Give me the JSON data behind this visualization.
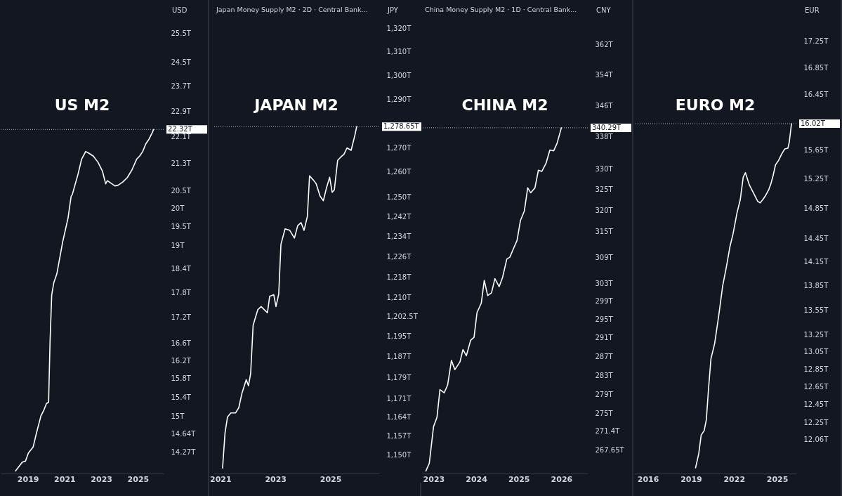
{
  "chart_data": [
    {
      "type": "line",
      "title": "US M2",
      "ylabel": "USD",
      "log": true,
      "grid": false,
      "marker": "none",
      "line_style": "solid",
      "color": "#ffffff",
      "x": [
        2018.33,
        2018.7,
        2018.87,
        2019.03,
        2019.29,
        2019.45,
        2019.71,
        2019.88,
        2020.01,
        2020.13,
        2020.21,
        2020.3,
        2020.41,
        2020.58,
        2020.89,
        2021.19,
        2021.36,
        2021.42,
        2021.73,
        2021.93,
        2022.15,
        2022.32,
        2022.57,
        2022.82,
        2023.07,
        2023.24,
        2023.33,
        2023.58,
        2023.75,
        2023.92,
        2024.17,
        2024.42,
        2024.67,
        2024.93,
        2025.09,
        2025.26,
        2025.43,
        2025.6,
        2025.77,
        2025.85
      ],
      "values": [
        13.9,
        14.07,
        14.09,
        14.25,
        14.37,
        14.62,
        15.0,
        15.13,
        15.26,
        15.29,
        16.63,
        17.74,
        18.04,
        18.27,
        19.08,
        19.74,
        20.35,
        20.39,
        20.97,
        21.42,
        21.65,
        21.6,
        21.51,
        21.33,
        21.06,
        20.7,
        20.79,
        20.7,
        20.64,
        20.66,
        20.75,
        20.88,
        21.1,
        21.42,
        21.51,
        21.65,
        21.88,
        22.02,
        22.21,
        22.32
      ],
      "xlim": [
        2017.52,
        2026.4
      ],
      "xticks": [
        2019,
        2021,
        2023,
        2025
      ],
      "ylim": [
        13.85,
        26.66
      ],
      "yticks": [
        {
          "value": 25.5,
          "label": "25.5T"
        },
        {
          "value": 24.5,
          "label": "24.5T"
        },
        {
          "value": 23.7,
          "label": "23.7T"
        },
        {
          "value": 22.9,
          "label": "22.9T"
        },
        {
          "value": 22.1,
          "label": "22.1T"
        },
        {
          "value": 21.3,
          "label": "21.3T"
        },
        {
          "value": 20.5,
          "label": "20.5T"
        },
        {
          "value": 20,
          "label": "20T"
        },
        {
          "value": 19.5,
          "label": "19.5T"
        },
        {
          "value": 19,
          "label": "19T"
        },
        {
          "value": 18.4,
          "label": "18.4T"
        },
        {
          "value": 17.8,
          "label": "17.8T"
        },
        {
          "value": 17.2,
          "label": "17.2T"
        },
        {
          "value": 16.6,
          "label": "16.6T"
        },
        {
          "value": 16.2,
          "label": "16.2T"
        },
        {
          "value": 15.8,
          "label": "15.8T"
        },
        {
          "value": 15.4,
          "label": "15.4T"
        },
        {
          "value": 15,
          "label": "15T"
        },
        {
          "value": 14.64,
          "label": "14.64T"
        },
        {
          "value": 14.27,
          "label": "14.27T"
        }
      ],
      "ref_lines": [
        {
          "axis": "y",
          "value": 22.32,
          "label": "22.32T",
          "line_style": "dotted",
          "color": "#b2b5be"
        }
      ]
    },
    {
      "type": "line",
      "title": "JAPAN M2",
      "subtitle": "Japan Money Supply M2 · 2D · Central Bank...",
      "ylabel": "JPY",
      "log": true,
      "grid": false,
      "marker": "none",
      "line_style": "solid",
      "color": "#ffffff",
      "x": [
        2021.08,
        2021.17,
        2021.26,
        2021.38,
        2021.55,
        2021.67,
        2021.78,
        2021.94,
        2022.02,
        2022.1,
        2022.19,
        2022.36,
        2022.48,
        2022.65,
        2022.71,
        2022.79,
        2022.94,
        2023.02,
        2023.12,
        2023.2,
        2023.35,
        2023.52,
        2023.69,
        2023.81,
        2023.93,
        2024.04,
        2024.16,
        2024.24,
        2024.39,
        2024.48,
        2024.62,
        2024.74,
        2024.85,
        2024.97,
        2025.06,
        2025.14,
        2025.26,
        2025.37,
        2025.49,
        2025.6,
        2025.75,
        2025.89,
        2025.95
      ],
      "values": [
        1145,
        1158.2,
        1164.1,
        1165.6,
        1165.6,
        1167.6,
        1172.9,
        1178.2,
        1175.9,
        1180.6,
        1199.1,
        1205.2,
        1206.4,
        1204.6,
        1204.0,
        1210.4,
        1211.0,
        1206.4,
        1211.3,
        1230.9,
        1237.1,
        1236.5,
        1233.4,
        1238.4,
        1239.6,
        1236.5,
        1242.1,
        1258.5,
        1256.6,
        1255.3,
        1250.3,
        1248.4,
        1253.4,
        1257.9,
        1251.8,
        1252.8,
        1264.8,
        1266.1,
        1267.3,
        1269.9,
        1268.9,
        1275.3,
        1278.65
      ],
      "xlim": [
        2020.75,
        2026.77
      ],
      "xticks": [
        2021,
        2023,
        2025
      ],
      "ylim": [
        1143,
        1331.5
      ],
      "yticks": [
        {
          "value": 1320,
          "label": "1,320T"
        },
        {
          "value": 1310,
          "label": "1,310T"
        },
        {
          "value": 1300,
          "label": "1,300T"
        },
        {
          "value": 1290,
          "label": "1,290T"
        },
        {
          "value": 1270,
          "label": "1,270T"
        },
        {
          "value": 1260,
          "label": "1,260T"
        },
        {
          "value": 1250,
          "label": "1,250T"
        },
        {
          "value": 1242,
          "label": "1,242T"
        },
        {
          "value": 1234,
          "label": "1,234T"
        },
        {
          "value": 1226,
          "label": "1,226T"
        },
        {
          "value": 1218,
          "label": "1,218T"
        },
        {
          "value": 1210,
          "label": "1,210T"
        },
        {
          "value": 1202.5,
          "label": "1,202.5T"
        },
        {
          "value": 1195,
          "label": "1,195T"
        },
        {
          "value": 1187,
          "label": "1,187T"
        },
        {
          "value": 1179,
          "label": "1,179T"
        },
        {
          "value": 1171,
          "label": "1,171T"
        },
        {
          "value": 1164,
          "label": "1,164T"
        },
        {
          "value": 1157,
          "label": "1,157T"
        },
        {
          "value": 1150,
          "label": "1,150T"
        }
      ],
      "ref_lines": [
        {
          "axis": "y",
          "value": 1278.65,
          "label": "1,278.65T",
          "line_style": "dotted",
          "color": "#b2b5be"
        }
      ]
    },
    {
      "type": "line",
      "title": "CHINA M2",
      "subtitle": "China Money Supply M2 · 1D · Central Bank...",
      "ylabel": "CNY",
      "log": true,
      "grid": false,
      "marker": "none",
      "line_style": "solid",
      "color": "#ffffff",
      "x": [
        2022.82,
        2022.9,
        2023.0,
        2023.08,
        2023.15,
        2023.25,
        2023.33,
        2023.42,
        2023.5,
        2023.62,
        2023.69,
        2023.77,
        2023.87,
        2023.95,
        2024.02,
        2024.12,
        2024.19,
        2024.27,
        2024.36,
        2024.44,
        2024.54,
        2024.62,
        2024.72,
        2024.79,
        2024.88,
        2024.96,
        2025.04,
        2025.13,
        2025.21,
        2025.28,
        2025.38,
        2025.46,
        2025.54,
        2025.64,
        2025.73,
        2025.82,
        2025.9,
        2026.0
      ],
      "values": [
        263.5,
        265.0,
        272.36,
        274.24,
        279.97,
        279.31,
        280.93,
        286.14,
        284.17,
        285.81,
        288.45,
        287.12,
        290.44,
        291.1,
        296.5,
        298.6,
        303.7,
        300.3,
        300.9,
        304.1,
        302.3,
        304.4,
        308.6,
        309.0,
        311.1,
        312.9,
        317.6,
        319.8,
        325.4,
        324.2,
        325.4,
        329.7,
        329.4,
        331.4,
        334.7,
        334.5,
        336.4,
        340.29
      ],
      "xlim": [
        2022.73,
        2026.62
      ],
      "xticks": [
        2023,
        2024,
        2025,
        2026
      ],
      "ylim": [
        263,
        373.9
      ],
      "yticks": [
        {
          "value": 362,
          "label": "362T"
        },
        {
          "value": 354,
          "label": "354T"
        },
        {
          "value": 346,
          "label": "346T"
        },
        {
          "value": 338,
          "label": "338T"
        },
        {
          "value": 330,
          "label": "330T"
        },
        {
          "value": 325,
          "label": "325T"
        },
        {
          "value": 320,
          "label": "320T"
        },
        {
          "value": 315,
          "label": "315T"
        },
        {
          "value": 309,
          "label": "309T"
        },
        {
          "value": 303,
          "label": "303T"
        },
        {
          "value": 299,
          "label": "299T"
        },
        {
          "value": 295,
          "label": "295T"
        },
        {
          "value": 291,
          "label": "291T"
        },
        {
          "value": 287,
          "label": "287T"
        },
        {
          "value": 283,
          "label": "283T"
        },
        {
          "value": 279,
          "label": "279T"
        },
        {
          "value": 275,
          "label": "275T"
        },
        {
          "value": 271.4,
          "label": "271.4T"
        },
        {
          "value": 267.65,
          "label": "267.65T"
        }
      ],
      "ref_lines": [
        {
          "axis": "y",
          "value": 340.29,
          "label": "340.29T",
          "line_style": "dotted",
          "color": "#b2b5be"
        }
      ]
    },
    {
      "type": "line",
      "title": "EURO M2",
      "ylabel": "EUR",
      "log": true,
      "grid": false,
      "marker": "none",
      "line_style": "solid",
      "color": "#ffffff",
      "x": [
        2019.32,
        2019.54,
        2019.71,
        2019.92,
        2020.07,
        2020.22,
        2020.39,
        2020.65,
        2020.93,
        2021.21,
        2021.46,
        2021.72,
        2021.93,
        2022.21,
        2022.43,
        2022.64,
        2022.79,
        2023.07,
        2023.39,
        2023.65,
        2023.82,
        2023.99,
        2024.2,
        2024.42,
        2024.57,
        2024.72,
        2024.89,
        2025.1,
        2025.32,
        2025.53,
        2025.75,
        2025.85,
        2026.0
      ],
      "values": [
        11.76,
        11.91,
        12.11,
        12.16,
        12.28,
        12.62,
        12.97,
        13.15,
        13.48,
        13.85,
        14.08,
        14.35,
        14.51,
        14.79,
        14.96,
        15.27,
        15.33,
        15.16,
        15.04,
        14.94,
        14.92,
        14.96,
        15.02,
        15.1,
        15.18,
        15.29,
        15.44,
        15.5,
        15.59,
        15.66,
        15.67,
        15.76,
        16.02
      ],
      "xlim": [
        2015.04,
        2026.34
      ],
      "xticks": [
        2016,
        2019,
        2022,
        2025
      ],
      "ylim": [
        11.7,
        17.88
      ],
      "yticks": [
        {
          "value": 17.25,
          "label": "17.25T"
        },
        {
          "value": 16.85,
          "label": "16.85T"
        },
        {
          "value": 16.45,
          "label": "16.45T"
        },
        {
          "value": 15.65,
          "label": "15.65T"
        },
        {
          "value": 15.25,
          "label": "15.25T"
        },
        {
          "value": 14.85,
          "label": "14.85T"
        },
        {
          "value": 14.45,
          "label": "14.45T"
        },
        {
          "value": 14.15,
          "label": "14.15T"
        },
        {
          "value": 13.85,
          "label": "13.85T"
        },
        {
          "value": 13.55,
          "label": "13.55T"
        },
        {
          "value": 13.25,
          "label": "13.25T"
        },
        {
          "value": 13.05,
          "label": "13.05T"
        },
        {
          "value": 12.85,
          "label": "12.85T"
        },
        {
          "value": 12.65,
          "label": "12.65T"
        },
        {
          "value": 12.45,
          "label": "12.45T"
        },
        {
          "value": 12.25,
          "label": "12.25T"
        },
        {
          "value": 12.06,
          "label": "12.06T"
        }
      ],
      "ref_lines": [
        {
          "axis": "y",
          "value": 16.02,
          "label": "16.02T",
          "line_style": "dotted",
          "color": "#b2b5be"
        }
      ]
    }
  ]
}
